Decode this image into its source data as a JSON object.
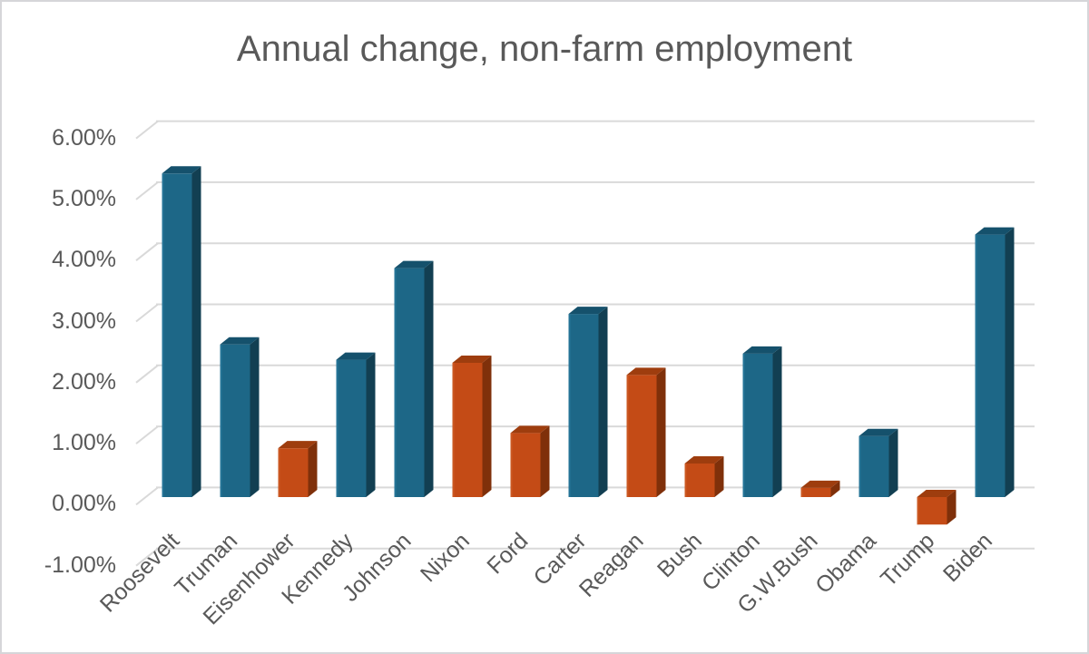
{
  "chart_data": {
    "type": "bar",
    "style": "3d-column",
    "title": "Annual change, non-farm employment",
    "categories": [
      "Roosevelt",
      "Truman",
      "Eisenhower",
      "Kennedy",
      "Johnson",
      "Nixon",
      "Ford",
      "Carter",
      "Reagan",
      "Bush",
      "Clinton",
      "G.W.Bush",
      "Obama",
      "Trump",
      "Biden"
    ],
    "values": [
      5.3,
      2.5,
      0.8,
      2.25,
      3.75,
      2.2,
      1.05,
      3.0,
      2.0,
      0.55,
      2.35,
      0.15,
      1.0,
      -0.45,
      4.3
    ],
    "bar_colors": [
      "blue",
      "blue",
      "orange",
      "blue",
      "blue",
      "orange",
      "orange",
      "blue",
      "orange",
      "orange",
      "blue",
      "orange",
      "blue",
      "orange",
      "blue"
    ],
    "value_unit": "percent",
    "xlabel": "",
    "ylabel": "",
    "ylim": [
      -1,
      6
    ],
    "ytick_values": [
      6,
      5,
      4,
      3,
      2,
      1,
      0,
      -1
    ],
    "ytick_labels": [
      "6.00%",
      "5.00%",
      "4.00%",
      "3.00%",
      "2.00%",
      "1.00%",
      "0.00%",
      "-1.00%"
    ],
    "grid": true,
    "legend": "none",
    "palette": {
      "blue_front": "#1d6787",
      "blue_top": "#15516c",
      "blue_side": "#123f52",
      "blue_edge": "#2b80a4",
      "orange_front": "#c44b16",
      "orange_top": "#9e3d0e",
      "orange_side": "#7f300a",
      "orange_edge": "#d2642e",
      "gridline": "#d9d9d9",
      "text": "#595959",
      "border": "#d6d6d9",
      "background": "#ffffff"
    }
  }
}
